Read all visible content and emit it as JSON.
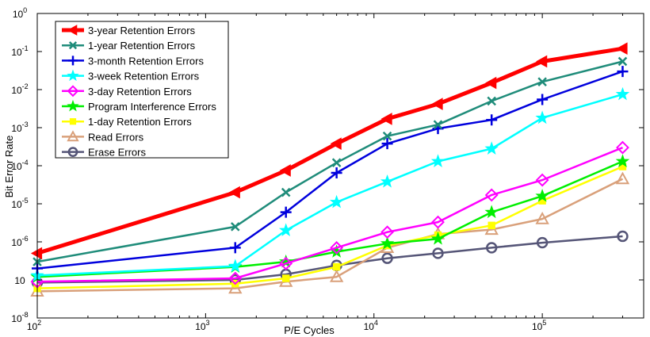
{
  "chart_data": {
    "type": "line",
    "title": "",
    "xlabel": "P/E Cycles",
    "ylabel": "Bit Error Rate",
    "xscale": "log",
    "yscale": "log",
    "xlim": [
      100,
      400000
    ],
    "ylim": [
      1e-08,
      1
    ],
    "x_ticks": [
      {
        "value": 100,
        "base": "10",
        "exp": "2"
      },
      {
        "value": 1000,
        "base": "10",
        "exp": "3"
      },
      {
        "value": 10000,
        "base": "10",
        "exp": "4"
      },
      {
        "value": 100000,
        "base": "10",
        "exp": "5"
      }
    ],
    "y_ticks": [
      {
        "value": 1,
        "base": "10",
        "exp": "0"
      },
      {
        "value": 0.1,
        "base": "10",
        "exp": "-1"
      },
      {
        "value": 0.01,
        "base": "10",
        "exp": "-2"
      },
      {
        "value": 0.001,
        "base": "10",
        "exp": "-3"
      },
      {
        "value": 0.0001,
        "base": "10",
        "exp": "-4"
      },
      {
        "value": 1e-05,
        "base": "10",
        "exp": "-5"
      },
      {
        "value": 1e-06,
        "base": "10",
        "exp": "-6"
      },
      {
        "value": 1e-07,
        "base": "10",
        "exp": ""
      },
      {
        "value": 1e-08,
        "base": "10",
        "exp": "-8"
      }
    ],
    "grid": false,
    "legend_position": "top-left",
    "x": [
      100,
      1500,
      3000,
      6000,
      12000,
      24000,
      50000,
      100000,
      300000
    ],
    "series": [
      {
        "name": "3-year Retention Errors",
        "color": "#ff0000",
        "marker": "triangle-left",
        "width": 5,
        "values": [
          5e-07,
          2e-05,
          7.5e-05,
          0.00038,
          0.0017,
          0.0042,
          0.015,
          0.055,
          0.12
        ]
      },
      {
        "name": "1-year Retention Errors",
        "color": "#1f8c7a",
        "marker": "x",
        "width": 2.5,
        "values": [
          3e-07,
          2.5e-06,
          2e-05,
          0.00012,
          0.0006,
          0.0012,
          0.005,
          0.016,
          0.055
        ]
      },
      {
        "name": "3-month Retention Errors",
        "color": "#0000dd",
        "marker": "plus",
        "width": 2.5,
        "values": [
          2e-07,
          7e-07,
          6e-06,
          6.5e-05,
          0.00038,
          0.00095,
          0.0016,
          0.0055,
          0.03
        ]
      },
      {
        "name": "3-week Retention Errors",
        "color": "#00ffff",
        "marker": "star",
        "width": 2.5,
        "values": [
          1.3e-07,
          2.3e-07,
          2e-06,
          1.1e-05,
          3.8e-05,
          0.00013,
          0.00028,
          0.0018,
          0.0075
        ]
      },
      {
        "name": "3-day Retention Errors",
        "color": "#ff00ff",
        "marker": "diamond",
        "width": 2.5,
        "values": [
          9e-08,
          1.1e-07,
          2.7e-07,
          7e-07,
          1.8e-06,
          3.3e-06,
          1.7e-05,
          4.2e-05,
          0.0003
        ]
      },
      {
        "name": "Program Interference Errors",
        "color": "#00ee00",
        "marker": "star",
        "width": 2.5,
        "values": [
          1.2e-07,
          2.2e-07,
          3e-07,
          5.5e-07,
          9e-07,
          1.2e-06,
          6e-06,
          1.6e-05,
          0.00013
        ]
      },
      {
        "name": "1-day Retention Errors",
        "color": "#ffff00",
        "marker": "square",
        "width": 2.5,
        "values": [
          6e-08,
          8e-08,
          1.1e-07,
          2.2e-07,
          8e-07,
          1.5e-06,
          2.7e-06,
          1.2e-05,
          9.5e-05
        ]
      },
      {
        "name": "Read Errors",
        "color": "#d9a07a",
        "marker": "triangle-up",
        "width": 2.5,
        "values": [
          5e-08,
          6e-08,
          9e-08,
          1.2e-07,
          7e-07,
          1.6e-06,
          2.1e-06,
          4e-06,
          4.5e-05
        ]
      },
      {
        "name": "Erase Errors",
        "color": "#555577",
        "marker": "circle",
        "width": 2.5,
        "values": [
          8.5e-08,
          1e-07,
          1.4e-07,
          2.4e-07,
          3.7e-07,
          5e-07,
          7e-07,
          9.5e-07,
          1.4e-06
        ]
      }
    ]
  }
}
